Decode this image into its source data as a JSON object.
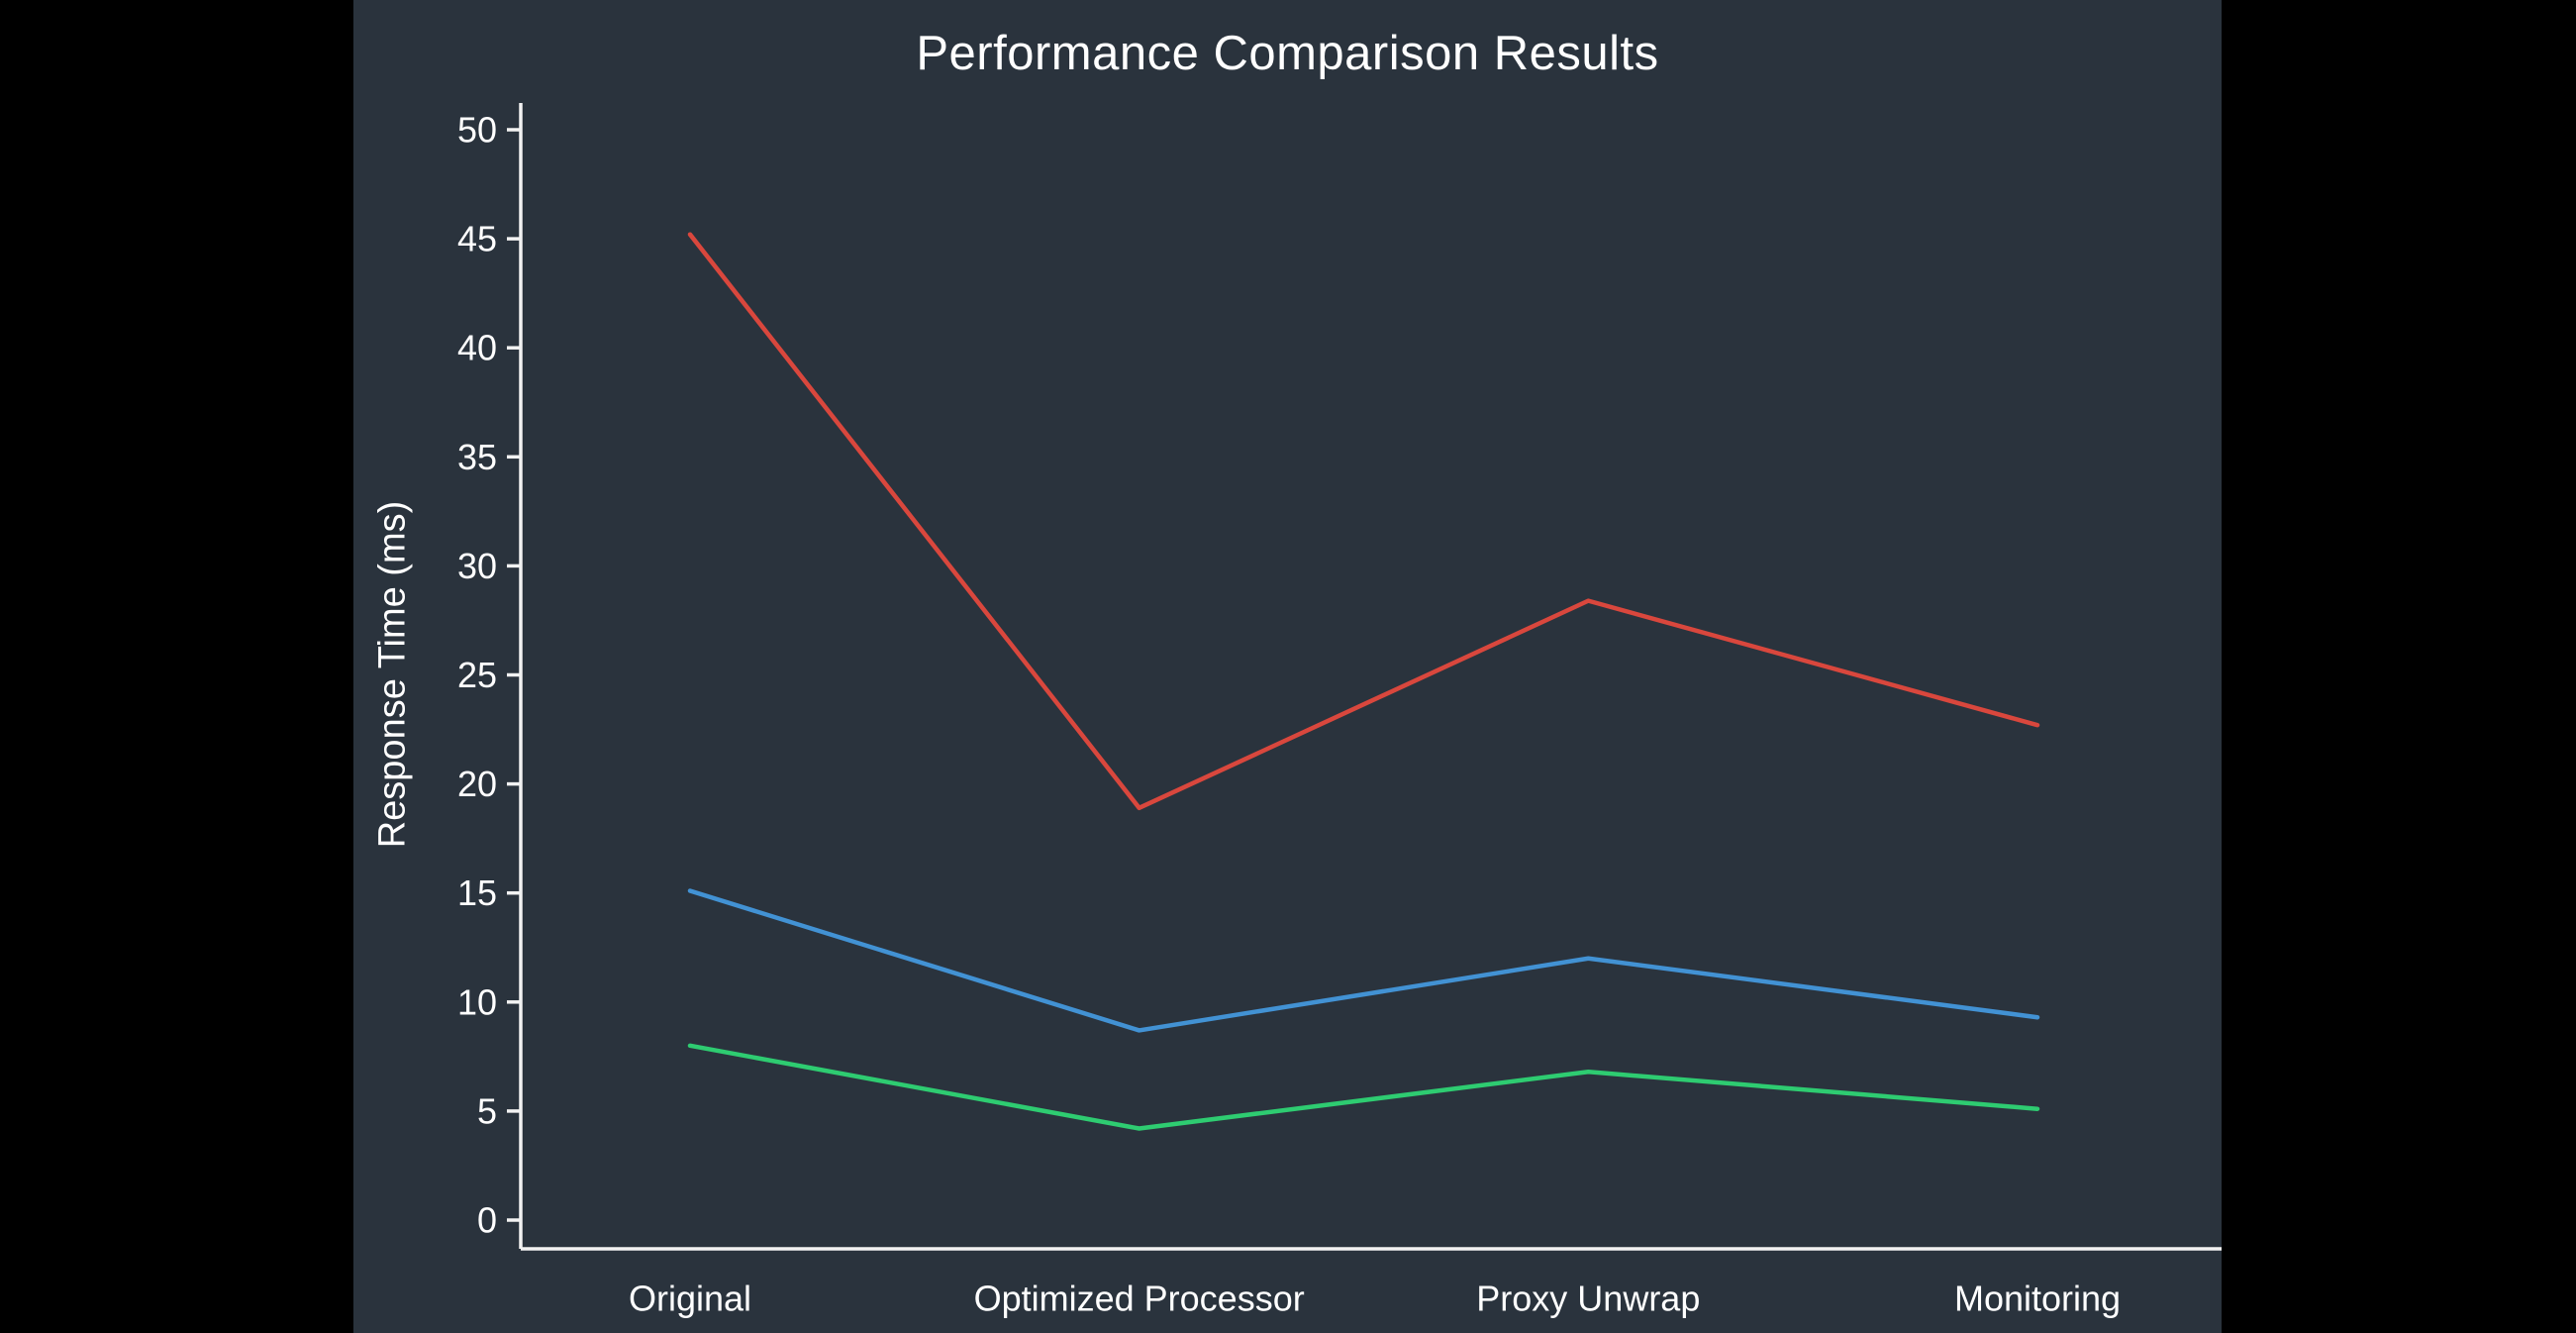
{
  "chart_data": {
    "type": "line",
    "title": "Performance Comparison Results",
    "xlabel": "",
    "ylabel": "Response Time (ms)",
    "categories": [
      "Original",
      "Optimized Processor",
      "Proxy Unwrap",
      "Monitoring"
    ],
    "series": [
      {
        "color": "#d9473d",
        "values": [
          45.2,
          18.9,
          28.4,
          22.7
        ]
      },
      {
        "color": "#4292d4",
        "values": [
          15.1,
          8.7,
          12.0,
          9.3
        ]
      },
      {
        "color": "#2ecc71",
        "values": [
          8.0,
          4.2,
          6.8,
          5.1
        ]
      }
    ],
    "yticks": [
      0,
      5,
      10,
      15,
      20,
      25,
      30,
      35,
      40,
      45,
      50
    ],
    "ylim": [
      0,
      50
    ],
    "grid": false,
    "legend": false,
    "colors": {
      "letterbox": "#000000",
      "background": "#2a333d",
      "axis": "#f2f2f2",
      "text": "#ffffff"
    }
  }
}
